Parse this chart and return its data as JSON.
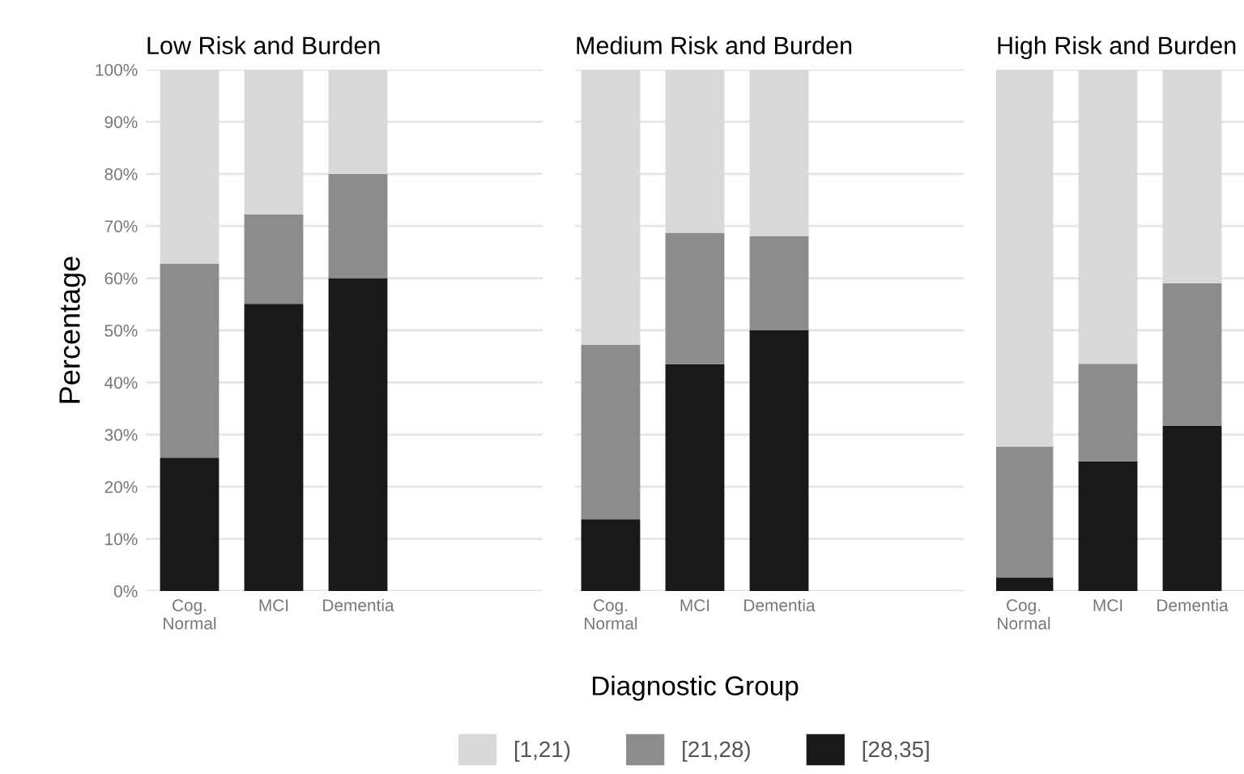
{
  "chart_data": [
    {
      "type": "bar",
      "title": "Low Risk and Burden",
      "ylabel": "Percentage",
      "legend": "bottom",
      "categories": [
        "Cog. Normal",
        "MCI",
        "Dementia"
      ],
      "stacked": true,
      "grid": "y",
      "ylim": [
        0,
        100
      ],
      "yticks": [
        {
          "value": 0,
          "label": "0%"
        },
        {
          "value": 10,
          "label": "10%"
        },
        {
          "value": 20,
          "label": "20%"
        },
        {
          "value": 30,
          "label": "30%"
        },
        {
          "value": 40,
          "label": "40%"
        },
        {
          "value": 50,
          "label": "50%"
        },
        {
          "value": 60,
          "label": "60%"
        },
        {
          "value": 70,
          "label": "70%"
        },
        {
          "value": 80,
          "label": "80%"
        },
        {
          "value": 90,
          "label": "90%"
        },
        {
          "value": 100,
          "label": "100%"
        }
      ],
      "series": [
        {
          "name": "[28,35]",
          "color": "#191919",
          "values": [
            25.6,
            55.1,
            60
          ]
        },
        {
          "name": "[21,28)",
          "color": "#8c8c8c",
          "values": [
            37.2,
            17.1,
            20
          ]
        },
        {
          "name": "[1,21)",
          "color": "#d9d9d9",
          "values": [
            37.2,
            27.8,
            20
          ]
        }
      ]
    },
    {
      "type": "bar",
      "title": "Medium Risk and Burden",
      "xlabel": "Diagnostic Group",
      "legend": "bottom",
      "tick_labels": "x",
      "categories": [
        "Cog. Normal",
        "MCI",
        "Dementia"
      ],
      "stacked": true,
      "grid": "y",
      "ylim": [
        0,
        100
      ],
      "yticks": [
        {
          "value": 0,
          "label": null
        },
        {
          "value": 10,
          "label": null
        },
        {
          "value": 20,
          "label": null
        },
        {
          "value": 30,
          "label": null
        },
        {
          "value": 40,
          "label": null
        },
        {
          "value": 50,
          "label": null
        },
        {
          "value": 60,
          "label": null
        },
        {
          "value": 70,
          "label": null
        },
        {
          "value": 80,
          "label": null
        },
        {
          "value": 90,
          "label": null
        },
        {
          "value": 100,
          "label": null
        }
      ],
      "series": [
        {
          "name": "[28,35]",
          "color": "#191919",
          "values": [
            13.8,
            43.5,
            50
          ]
        },
        {
          "name": "[21,28)",
          "color": "#8c8c8c",
          "values": [
            33.4,
            25.2,
            18.1
          ]
        },
        {
          "name": "[1,21)",
          "color": "#d9d9d9",
          "values": [
            52.8,
            31.3,
            31.9
          ]
        }
      ]
    },
    {
      "type": "bar",
      "title": "High Risk and Burden",
      "legend": "bottom",
      "tick_labels": "x",
      "categories": [
        "Cog. Normal",
        "MCI",
        "Dementia"
      ],
      "stacked": true,
      "grid": "y",
      "ylim": [
        0,
        100
      ],
      "yticks": [
        {
          "value": 0,
          "label": null
        },
        {
          "value": 10,
          "label": null
        },
        {
          "value": 20,
          "label": null
        },
        {
          "value": 30,
          "label": null
        },
        {
          "value": 40,
          "label": null
        },
        {
          "value": 50,
          "label": null
        },
        {
          "value": 60,
          "label": null
        },
        {
          "value": 70,
          "label": null
        },
        {
          "value": 80,
          "label": null
        },
        {
          "value": 90,
          "label": null
        },
        {
          "value": 100,
          "label": null
        }
      ],
      "series": [
        {
          "name": "[28,35]",
          "color": "#191919",
          "values": [
            2.6,
            24.9,
            31.7
          ]
        },
        {
          "name": "[21,28)",
          "color": "#8c8c8c",
          "values": [
            25.1,
            18.7,
            27.3
          ]
        },
        {
          "name": "[1,21)",
          "color": "#d9d9d9",
          "values": [
            72.3,
            56.4,
            41
          ]
        }
      ]
    }
  ]
}
